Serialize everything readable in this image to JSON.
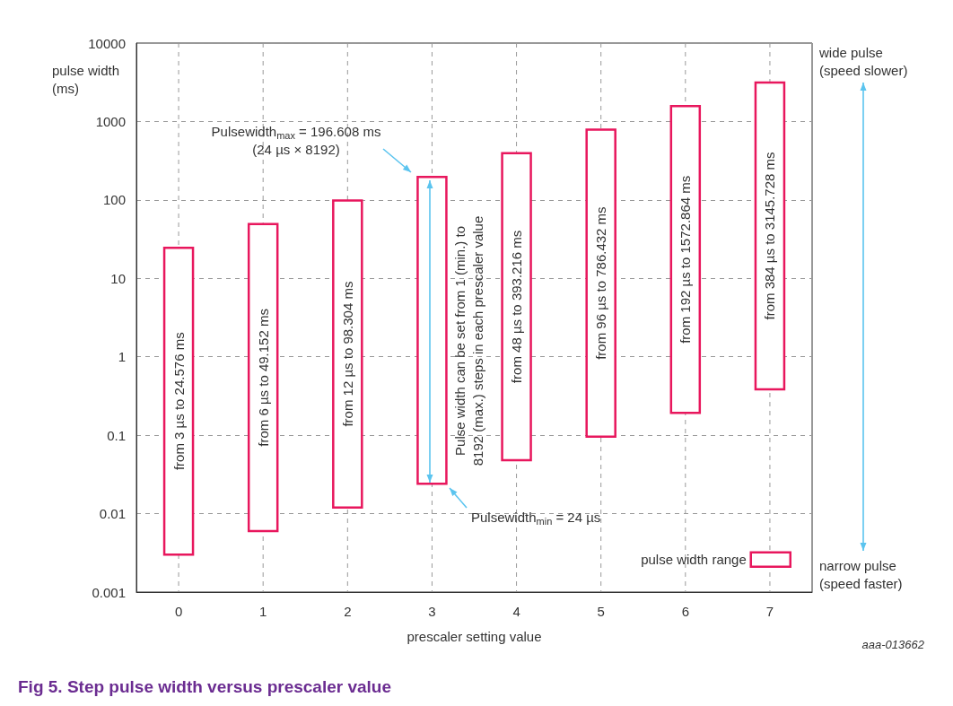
{
  "chart_data": {
    "type": "bar",
    "title": "Fig 5. Step pulse width versus prescaler value",
    "xlabel": "prescaler setting value",
    "ylabel": "pulse width\n(ms)",
    "categories": [
      "0",
      "1",
      "2",
      "3",
      "4",
      "5",
      "6",
      "7"
    ],
    "series": [
      {
        "name": "pulse width range",
        "color": "#e8175d",
        "base": [
          0.003,
          0.006,
          0.012,
          0.024,
          0.048,
          0.096,
          0.192,
          0.384
        ],
        "values": [
          24.573,
          49.146,
          98.292,
          196.584,
          393.168,
          786.336,
          1572.672,
          3145.344
        ],
        "value_labels": [
          "from 3 µs to 24.576 ms",
          "from 6 µs to 49.152 ms",
          "from 12 µs to 98.304 ms",
          null,
          "from 48 µs to 393.216 ms",
          "from 96 µs to 786.432 ms",
          "from 192 µs to 1572.864 ms",
          "from 384 µs to 3145.728 ms"
        ]
      }
    ],
    "log": "y",
    "ylim": [
      0.001,
      10000
    ],
    "yticks": [
      0.001,
      0.01,
      0.1,
      1,
      10,
      100,
      1000,
      10000
    ],
    "grid": true,
    "legend": "bottom right",
    "annotations": [
      "Pulsewidth$_{max}$ = 196.608 ms\n(24 µs × 8192)",
      "Pulse width can be set from 1 (min.) to\n8192 (max.) steps in each prescaler value",
      "Pulsewidth$_{min}$ = 24 µs",
      "aaa-013662",
      "wide pulse\n(speed slower)",
      "narrow pulse\n(speed faster)"
    ]
  }
}
